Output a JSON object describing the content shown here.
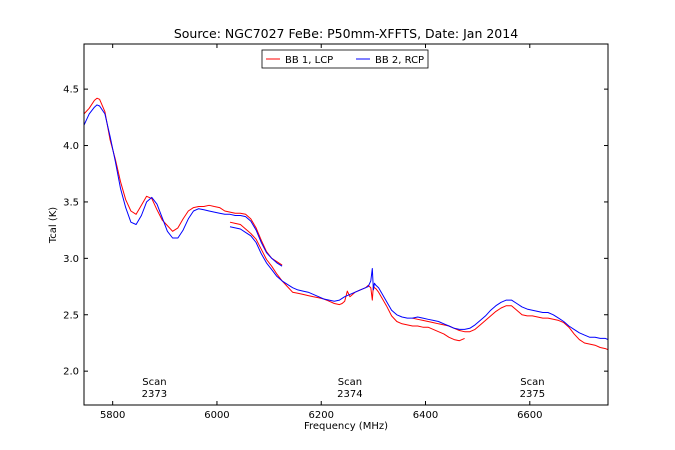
{
  "chart_data": {
    "type": "line",
    "title": "Source: NGC7027 FeBe: P50mm-XFFTS, Date: Jan 2014",
    "xlabel": "Frequency (MHz)",
    "ylabel": "Tcal (K)",
    "xlim": [
      5745,
      6750
    ],
    "ylim": [
      1.7,
      4.9
    ],
    "xticks": [
      5800,
      6000,
      6200,
      6400,
      6600
    ],
    "yticks": [
      2.0,
      2.5,
      3.0,
      3.5,
      4.0,
      4.5
    ],
    "xtick_labels": [
      "5800",
      "6000",
      "6200",
      "6400",
      "6600"
    ],
    "ytick_labels": [
      "2.0",
      "2.5",
      "3.0",
      "3.5",
      "4.0",
      "4.5"
    ],
    "grid": false,
    "legend_position": "top-center",
    "annotations": [
      {
        "label": "Scan",
        "value": "2373",
        "x": 5880
      },
      {
        "label": "Scan",
        "value": "2374",
        "x": 6255
      },
      {
        "label": "Scan",
        "value": "2375",
        "x": 6605
      }
    ],
    "series": [
      {
        "name": "BB 1, LCP",
        "color": "#ff0000",
        "segments": [
          {
            "x": [
              5745,
              5755,
              5765,
              5770,
              5775,
              5785,
              5795,
              5805,
              5815,
              5825,
              5835,
              5845,
              5855,
              5865,
              5875,
              5885,
              5895,
              5905,
              5915,
              5925,
              5935,
              5945,
              5955,
              5965,
              5975,
              5985,
              5995,
              6005,
              6015,
              6025,
              6035,
              6045,
              6055,
              6065,
              6075,
              6085,
              6095,
              6105,
              6115,
              6125
            ],
            "y": [
              4.28,
              4.33,
              4.4,
              4.42,
              4.41,
              4.3,
              4.05,
              3.88,
              3.68,
              3.52,
              3.42,
              3.39,
              3.47,
              3.55,
              3.53,
              3.43,
              3.34,
              3.29,
              3.24,
              3.27,
              3.35,
              3.42,
              3.45,
              3.46,
              3.46,
              3.47,
              3.46,
              3.45,
              3.42,
              3.41,
              3.4,
              3.4,
              3.39,
              3.35,
              3.27,
              3.16,
              3.06,
              3.0,
              2.97,
              2.94
            ]
          },
          {
            "x": [
              6025,
              6035,
              6045,
              6055,
              6065,
              6075,
              6085,
              6095,
              6105,
              6115,
              6125,
              6135,
              6145,
              6155,
              6165,
              6175,
              6185,
              6195,
              6205,
              6215,
              6225,
              6235,
              6240,
              6245,
              6250,
              6255,
              6265,
              6275,
              6285,
              6290,
              6295,
              6298,
              6300,
              6302,
              6305,
              6310,
              6315,
              6325,
              6335,
              6345,
              6355,
              6365,
              6375,
              6385,
              6395,
              6405,
              6415,
              6425,
              6435,
              6445,
              6455,
              6465,
              6475
            ],
            "y": [
              3.32,
              3.31,
              3.3,
              3.26,
              3.22,
              3.17,
              3.08,
              2.99,
              2.93,
              2.86,
              2.8,
              2.75,
              2.7,
              2.69,
              2.68,
              2.67,
              2.66,
              2.65,
              2.64,
              2.62,
              2.6,
              2.59,
              2.6,
              2.62,
              2.71,
              2.66,
              2.7,
              2.72,
              2.74,
              2.76,
              2.74,
              2.63,
              2.76,
              2.74,
              2.73,
              2.7,
              2.66,
              2.58,
              2.49,
              2.44,
              2.42,
              2.41,
              2.4,
              2.4,
              2.39,
              2.39,
              2.37,
              2.35,
              2.33,
              2.3,
              2.28,
              2.27,
              2.29
            ]
          },
          {
            "x": [
              6375,
              6385,
              6395,
              6405,
              6415,
              6425,
              6435,
              6445,
              6455,
              6465,
              6475,
              6485,
              6495,
              6505,
              6515,
              6525,
              6535,
              6545,
              6555,
              6565,
              6575,
              6585,
              6595,
              6605,
              6615,
              6625,
              6635,
              6645,
              6655,
              6665,
              6675,
              6685,
              6695,
              6705,
              6715,
              6725,
              6735,
              6745,
              6750
            ],
            "y": [
              2.47,
              2.46,
              2.45,
              2.44,
              2.43,
              2.42,
              2.41,
              2.4,
              2.38,
              2.36,
              2.35,
              2.35,
              2.37,
              2.41,
              2.45,
              2.49,
              2.53,
              2.56,
              2.58,
              2.58,
              2.54,
              2.5,
              2.49,
              2.49,
              2.48,
              2.47,
              2.47,
              2.46,
              2.45,
              2.43,
              2.39,
              2.33,
              2.28,
              2.25,
              2.24,
              2.23,
              2.21,
              2.2,
              2.19
            ]
          }
        ]
      },
      {
        "name": "BB 2, RCP",
        "color": "#0000ff",
        "segments": [
          {
            "x": [
              5745,
              5755,
              5765,
              5770,
              5775,
              5785,
              5795,
              5805,
              5815,
              5825,
              5835,
              5845,
              5855,
              5865,
              5875,
              5885,
              5895,
              5905,
              5915,
              5925,
              5935,
              5945,
              5955,
              5965,
              5975,
              5985,
              5995,
              6005,
              6015,
              6025,
              6035,
              6045,
              6055,
              6065,
              6075,
              6085,
              6095,
              6105,
              6115,
              6125
            ],
            "y": [
              4.18,
              4.28,
              4.34,
              4.36,
              4.35,
              4.28,
              4.08,
              3.86,
              3.62,
              3.45,
              3.32,
              3.3,
              3.38,
              3.5,
              3.54,
              3.48,
              3.36,
              3.24,
              3.18,
              3.18,
              3.25,
              3.35,
              3.42,
              3.44,
              3.43,
              3.42,
              3.41,
              3.4,
              3.39,
              3.39,
              3.38,
              3.38,
              3.37,
              3.33,
              3.25,
              3.14,
              3.05,
              3.0,
              2.96,
              2.93
            ]
          },
          {
            "x": [
              6025,
              6035,
              6045,
              6055,
              6065,
              6075,
              6085,
              6095,
              6105,
              6115,
              6125,
              6135,
              6145,
              6155,
              6165,
              6175,
              6185,
              6195,
              6205,
              6215,
              6225,
              6235,
              6245,
              6255,
              6265,
              6275,
              6285,
              6290,
              6295,
              6298,
              6300,
              6302,
              6305,
              6310,
              6315,
              6325,
              6335,
              6345,
              6355,
              6365,
              6375,
              6385,
              6395,
              6405,
              6415,
              6425,
              6435,
              6445,
              6455,
              6465,
              6475,
              6485,
              6495,
              6505,
              6515,
              6525,
              6535,
              6545,
              6555,
              6565,
              6575,
              6585,
              6595,
              6605,
              6615,
              6625,
              6635,
              6645,
              6655,
              6665,
              6675,
              6685,
              6695,
              6705,
              6715,
              6725,
              6735,
              6745,
              6750
            ],
            "y": [
              3.28,
              3.27,
              3.26,
              3.23,
              3.2,
              3.14,
              3.04,
              2.96,
              2.9,
              2.84,
              2.8,
              2.77,
              2.74,
              2.72,
              2.71,
              2.7,
              2.68,
              2.66,
              2.64,
              2.63,
              2.62,
              2.63,
              2.66,
              2.68,
              2.7,
              2.72,
              2.74,
              2.75,
              2.8,
              2.91,
              2.72,
              2.78,
              2.76,
              2.74,
              2.7,
              2.62,
              2.54,
              2.5,
              2.48,
              2.47,
              2.47,
              2.48,
              2.47,
              2.46,
              2.45,
              2.44,
              2.42,
              2.4,
              2.38,
              2.37,
              2.37,
              2.38,
              2.41,
              2.45,
              2.49,
              2.54,
              2.58,
              2.61,
              2.63,
              2.63,
              2.6,
              2.57,
              2.55,
              2.54,
              2.53,
              2.52,
              2.52,
              2.5,
              2.47,
              2.44,
              2.4,
              2.37,
              2.34,
              2.32,
              2.3,
              2.3,
              2.29,
              2.29,
              2.28
            ]
          }
        ]
      }
    ]
  }
}
